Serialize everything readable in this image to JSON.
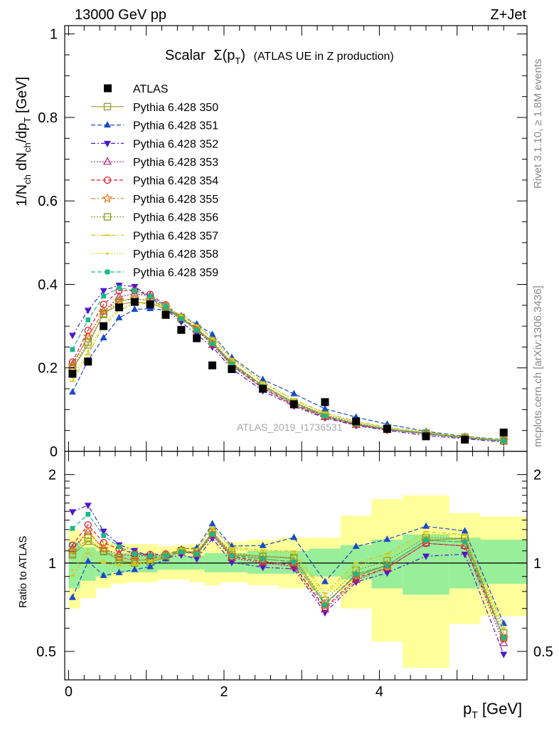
{
  "header": {
    "energy_label": "13000 GeV pp",
    "process_label": "Z+Jet",
    "title_main": "Scalar",
    "title_sigma": "Σ(p",
    "title_sub_T": "T",
    "title_close": ")",
    "title_rest": "(ATLAS UE in Z production)",
    "side_text_top": "Rivet 3.1.10, ≥ 1.8M events",
    "side_text_bottom": "mcplots.cern.ch [arXiv:1306.3436]",
    "watermark": "ATLAS_2019_I1736531"
  },
  "axes": {
    "ylabel_main": "1/N",
    "ylabel_main_sub1": "ch",
    "ylabel_main_mid": " dN",
    "ylabel_main_sub2": "ch",
    "ylabel_main_end": "/dp",
    "ylabel_main_sub3": "T",
    "ylabel_main_unit": " [GeV]",
    "ylabel_ratio": "Ratio to ATLAS",
    "xlabel": "p",
    "xlabel_sub": "T",
    "xlabel_unit": " [GeV]",
    "x_ticks": [
      "0",
      "2",
      "4"
    ],
    "y_ticks_main": [
      "0",
      "0.2",
      "0.4",
      "0.6",
      "0.8",
      "1"
    ],
    "y_ticks_ratio": [
      "0.5",
      "1",
      "2"
    ]
  },
  "chart_data": {
    "type": "scatter",
    "xlim": [
      -0.05,
      5.9
    ],
    "ylim_main": [
      0,
      1.02
    ],
    "ylim_ratio": [
      0.4,
      2.4
    ],
    "ratio_scale": "log",
    "legend_placement": "top-left",
    "x": [
      0.05,
      0.25,
      0.45,
      0.65,
      0.85,
      1.05,
      1.25,
      1.45,
      1.65,
      1.85,
      2.1,
      2.5,
      2.9,
      3.3,
      3.7,
      4.1,
      4.6,
      5.1,
      5.6
    ],
    "data": {
      "name": "ATLAS",
      "values": [
        0.186,
        0.215,
        0.3,
        0.345,
        0.358,
        0.352,
        0.327,
        0.291,
        0.271,
        0.206,
        0.197,
        0.15,
        0.113,
        0.118,
        0.072,
        0.054,
        0.036,
        0.028,
        0.045
      ]
    },
    "band_edges": [
      0.0,
      0.15,
      0.35,
      0.55,
      0.75,
      0.95,
      1.15,
      1.35,
      1.55,
      1.75,
      1.95,
      2.3,
      2.7,
      3.1,
      3.5,
      3.9,
      4.3,
      4.9,
      5.3,
      5.9
    ],
    "band_inner": [
      0.82,
      0.87,
      0.9,
      0.93,
      0.93,
      0.93,
      0.95,
      0.95,
      0.95,
      0.93,
      0.93,
      0.92,
      0.92,
      0.9,
      0.88,
      0.82,
      0.78,
      0.82,
      0.85
    ],
    "band_inner_hi": [
      1.18,
      1.13,
      1.1,
      1.08,
      1.08,
      1.08,
      1.06,
      1.06,
      1.06,
      1.08,
      1.08,
      1.1,
      1.1,
      1.12,
      1.15,
      1.2,
      1.25,
      1.22,
      1.2
    ],
    "band_outer": [
      0.7,
      0.76,
      0.82,
      0.85,
      0.86,
      0.86,
      0.88,
      0.88,
      0.86,
      0.84,
      0.86,
      0.84,
      0.82,
      0.8,
      0.7,
      0.54,
      0.44,
      0.62,
      0.66
    ],
    "band_outer_hi": [
      1.3,
      1.24,
      1.18,
      1.16,
      1.16,
      1.16,
      1.14,
      1.15,
      1.16,
      1.18,
      1.18,
      1.2,
      1.22,
      1.22,
      1.45,
      1.65,
      1.7,
      1.48,
      1.44
    ],
    "series": [
      {
        "name": "Pythia 6.428 350",
        "color": "#999933",
        "marker": "square-open",
        "dash": "solid",
        "values": [
          0.198,
          0.255,
          0.33,
          0.352,
          0.358,
          0.355,
          0.341,
          0.317,
          0.293,
          0.262,
          0.21,
          0.158,
          0.117,
          0.086,
          0.065,
          0.053,
          0.043,
          0.034,
          0.025
        ]
      },
      {
        "name": "Pythia 6.428 351",
        "color": "#1a4cc4",
        "marker": "triangle-up",
        "dash": "6,3",
        "values": [
          0.142,
          0.218,
          0.272,
          0.32,
          0.34,
          0.342,
          0.338,
          0.325,
          0.305,
          0.28,
          0.225,
          0.172,
          0.138,
          0.102,
          0.082,
          0.065,
          0.048,
          0.036,
          0.028
        ]
      },
      {
        "name": "Pythia 6.428 352",
        "color": "#4a1acc",
        "marker": "triangle-down",
        "dash": "6,3,2,3",
        "values": [
          0.278,
          0.338,
          0.385,
          0.398,
          0.395,
          0.37,
          0.34,
          0.31,
          0.28,
          0.25,
          0.198,
          0.145,
          0.108,
          0.08,
          0.062,
          0.05,
          0.038,
          0.03,
          0.022
        ]
      },
      {
        "name": "Pythia 6.428 353",
        "color": "#b0207a",
        "marker": "triangle-up-open",
        "dash": "2,2",
        "values": [
          0.208,
          0.275,
          0.335,
          0.37,
          0.378,
          0.372,
          0.348,
          0.32,
          0.29,
          0.255,
          0.205,
          0.15,
          0.11,
          0.082,
          0.063,
          0.052,
          0.042,
          0.032,
          0.024
        ]
      },
      {
        "name": "Pythia 6.428 354",
        "color": "#dd1a2a",
        "marker": "circle-open",
        "dash": "5,3",
        "values": [
          0.214,
          0.29,
          0.352,
          0.385,
          0.385,
          0.376,
          0.351,
          0.322,
          0.292,
          0.258,
          0.207,
          0.152,
          0.111,
          0.083,
          0.064,
          0.052,
          0.042,
          0.032,
          0.025
        ]
      },
      {
        "name": "Pythia 6.428 355",
        "color": "#ee7a1a",
        "marker": "star-open",
        "dash": "6,3,2,3",
        "values": [
          0.205,
          0.275,
          0.336,
          0.362,
          0.365,
          0.362,
          0.345,
          0.32,
          0.292,
          0.26,
          0.21,
          0.155,
          0.114,
          0.085,
          0.066,
          0.053,
          0.043,
          0.033,
          0.025
        ]
      },
      {
        "name": "Pythia 6.428 356",
        "color": "#8a9a1a",
        "marker": "square-open",
        "dash": "2,2",
        "values": [
          0.2,
          0.262,
          0.328,
          0.36,
          0.365,
          0.362,
          0.346,
          0.321,
          0.295,
          0.263,
          0.213,
          0.158,
          0.118,
          0.088,
          0.068,
          0.055,
          0.044,
          0.034,
          0.026
        ]
      },
      {
        "name": "Pythia 6.428 357",
        "color": "#d8c21a",
        "marker": "dash-marker",
        "dash": "6,3,2,3",
        "values": [
          0.168,
          0.232,
          0.3,
          0.338,
          0.352,
          0.355,
          0.345,
          0.325,
          0.302,
          0.272,
          0.222,
          0.166,
          0.124,
          0.093,
          0.072,
          0.058,
          0.046,
          0.035,
          0.027
        ]
      },
      {
        "name": "Pythia 6.428 358",
        "color": "#c8d81a",
        "marker": "dot",
        "dash": "2,2",
        "values": [
          0.176,
          0.24,
          0.306,
          0.342,
          0.355,
          0.357,
          0.346,
          0.326,
          0.302,
          0.271,
          0.22,
          0.164,
          0.122,
          0.091,
          0.07,
          0.057,
          0.045,
          0.035,
          0.027
        ]
      },
      {
        "name": "Pythia 6.428 359",
        "color": "#1ab88a",
        "marker": "square-filled",
        "dash": "6,3",
        "values": [
          0.244,
          0.315,
          0.372,
          0.392,
          0.385,
          0.372,
          0.346,
          0.318,
          0.29,
          0.258,
          0.208,
          0.155,
          0.114,
          0.085,
          0.066,
          0.053,
          0.043,
          0.033,
          0.025
        ]
      }
    ]
  }
}
